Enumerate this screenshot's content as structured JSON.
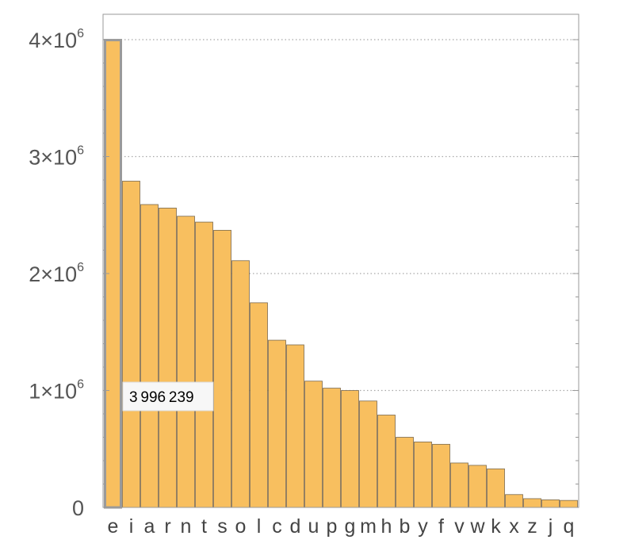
{
  "chart_data": {
    "type": "bar",
    "categories": [
      "e",
      "i",
      "a",
      "r",
      "n",
      "t",
      "s",
      "o",
      "l",
      "c",
      "d",
      "u",
      "p",
      "g",
      "m",
      "h",
      "b",
      "y",
      "f",
      "v",
      "w",
      "k",
      "x",
      "z",
      "j",
      "q"
    ],
    "values": [
      3996239,
      2790000,
      2590000,
      2560000,
      2490000,
      2440000,
      2370000,
      2110000,
      1750000,
      1430000,
      1390000,
      1080000,
      1020000,
      1000000,
      910000,
      790000,
      600000,
      560000,
      540000,
      380000,
      360000,
      330000,
      110000,
      75000,
      65000,
      60000
    ],
    "ylim": [
      0,
      4000000
    ],
    "yticks": [
      {
        "value": 0,
        "mantissa": "0",
        "exp": ""
      },
      {
        "value": 1000000,
        "mantissa": "1×10",
        "exp": "6"
      },
      {
        "value": 2000000,
        "mantissa": "2×10",
        "exp": "6"
      },
      {
        "value": 3000000,
        "mantissa": "3×10",
        "exp": "6"
      },
      {
        "value": 4000000,
        "mantissa": "4×10",
        "exp": "6"
      }
    ],
    "grid": "horizontal-dotted",
    "bar_color": "#f8bf5f",
    "bar_edge_color": "#7a6a4f",
    "highlight_edge_color": "#9a9a9a",
    "highlighted_index": 0,
    "tooltip": "3 996 239"
  }
}
